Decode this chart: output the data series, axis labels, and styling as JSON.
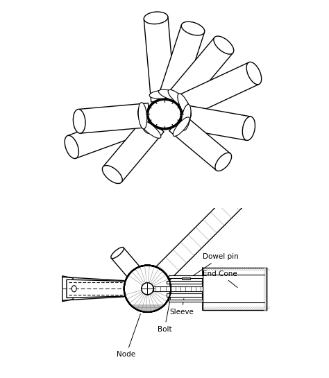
{
  "background_color": "#ffffff",
  "line_color": "#000000",
  "hatch_color": "#000000",
  "fig_width": 4.74,
  "fig_height": 5.45,
  "dpi": 100,
  "labels": {
    "dowel_pin": "Dowel pin",
    "end_cone": "End Cone",
    "sleeve": "Sleeve",
    "bolt": "Bolt",
    "node": "Node"
  },
  "label_fontsize": 7.5,
  "gray_light": "#cccccc",
  "gray_mid": "#888888",
  "gray_dark": "#444444",
  "gray_fill": "#aaaaaa",
  "hatch_fill": "#666666"
}
